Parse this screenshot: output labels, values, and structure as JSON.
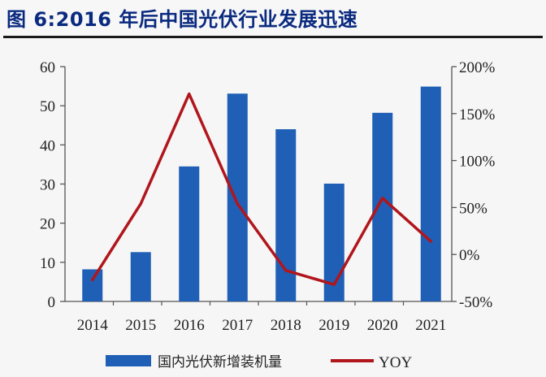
{
  "figure_title": "图 6:2016 年后中国光伏行业发展迅速",
  "chart_data": {
    "type": "bar",
    "categories": [
      "2014",
      "2015",
      "2016",
      "2017",
      "2018",
      "2019",
      "2020",
      "2021"
    ],
    "series": [
      {
        "name": "国内光伏新增装机量",
        "type": "bar",
        "axis": "left",
        "color": "#1f5fb5",
        "values": [
          8.2,
          12.6,
          34.5,
          53.1,
          44.0,
          30.1,
          48.2,
          54.9
        ]
      },
      {
        "name": "YOY",
        "type": "line",
        "axis": "right",
        "color": "#b0161c",
        "values": [
          -0.27,
          0.54,
          1.71,
          0.54,
          -0.17,
          -0.32,
          0.6,
          0.14
        ]
      }
    ],
    "y_left": {
      "ylim": [
        0,
        60
      ],
      "ticks": [
        0,
        10,
        20,
        30,
        40,
        50,
        60
      ],
      "tick_labels": [
        "0",
        "10",
        "20",
        "30",
        "40",
        "50",
        "60"
      ]
    },
    "y_right": {
      "ylim": [
        -0.5,
        2.0
      ],
      "ticks": [
        -0.5,
        0,
        0.5,
        1.0,
        1.5,
        2.0
      ],
      "tick_labels": [
        "-50%",
        "0%",
        "50%",
        "100%",
        "150%",
        "200%"
      ]
    },
    "legend": {
      "placement": "bottom",
      "items": [
        "国内光伏新增装机量",
        "YOY"
      ]
    },
    "grid": false
  }
}
